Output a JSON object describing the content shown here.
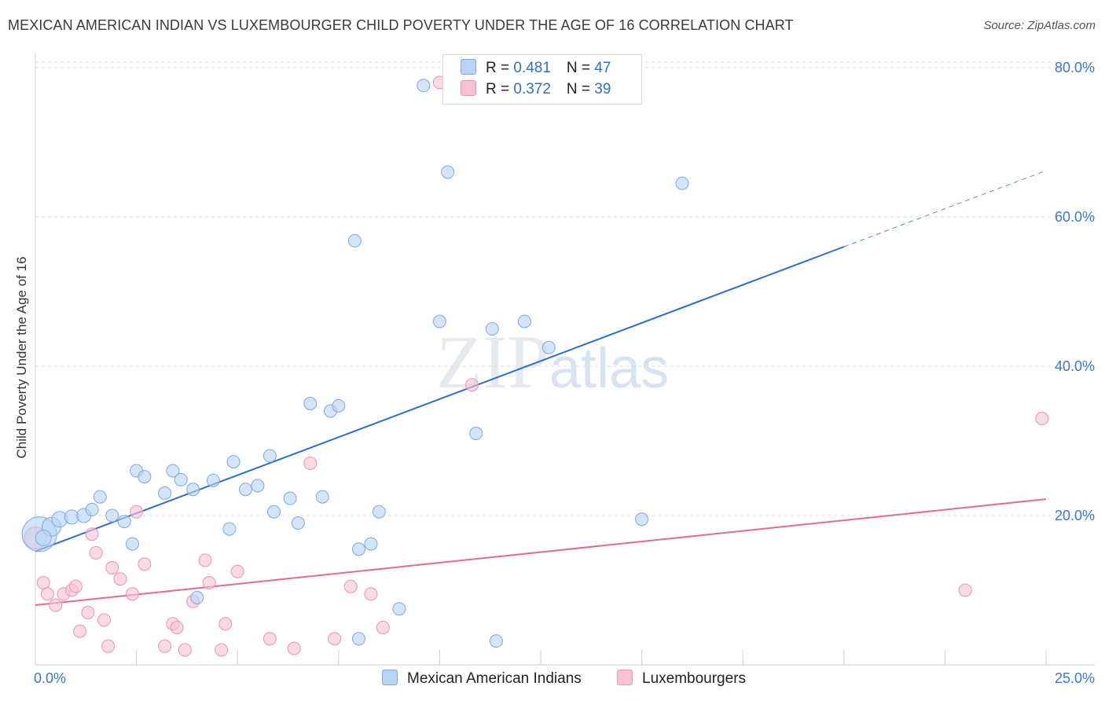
{
  "header": {
    "title": "MEXICAN AMERICAN INDIAN VS LUXEMBOURGER CHILD POVERTY UNDER THE AGE OF 16 CORRELATION CHART",
    "source": "Source: ZipAtlas.com"
  },
  "watermark": {
    "zip": "ZIP",
    "atlas": "atlas"
  },
  "legend_top": [
    {
      "r_label": "R = ",
      "r_value": "0.481",
      "n_label": "N = ",
      "n_value": "47"
    },
    {
      "r_label": "R = ",
      "r_value": "0.372",
      "n_label": "N = ",
      "n_value": "39"
    }
  ],
  "legend_bottom": [
    {
      "label": "Mexican American Indians"
    },
    {
      "label": "Luxembourgers"
    }
  ],
  "colors": {
    "blue_fill": "#b8d3f5",
    "blue_stroke": "#7aa9e3",
    "blue_line": "#2a6fd0",
    "pink_fill": "#f7c3d3",
    "pink_stroke": "#ee93b0",
    "pink_line": "#e46a95",
    "grid": "#dcdcdc",
    "axis_text": "#3b78c9"
  },
  "chart_data": {
    "type": "scatter",
    "title": "MEXICAN AMERICAN INDIAN VS LUXEMBOURGER CHILD POVERTY UNDER THE AGE OF 16 CORRELATION CHART",
    "xlabel": "",
    "ylabel": "Child Poverty Under the Age of 16",
    "xlim": [
      0,
      25
    ],
    "ylim": [
      0,
      82
    ],
    "x_tick_labels": [
      "0.0%",
      "25.0%"
    ],
    "y_ticks": [
      20,
      40,
      60,
      80
    ],
    "y_tick_labels": [
      "20.0%",
      "40.0%",
      "60.0%",
      "80.0%"
    ],
    "grid": true,
    "legend_position": "top-center",
    "series": [
      {
        "name": "Mexican American Indians",
        "R": 0.481,
        "N": 47,
        "trend": {
          "x0": 0,
          "y0": 15.2,
          "x1": 20,
          "y1": 56.0,
          "dashed_to_x": 25,
          "dashed_to_y": 66.2
        },
        "points": [
          [
            0.1,
            17.5,
            22
          ],
          [
            0.4,
            18.5,
            12
          ],
          [
            0.6,
            19.5,
            10
          ],
          [
            0.9,
            19.8,
            9
          ],
          [
            1.2,
            20.0,
            9
          ],
          [
            1.4,
            20.8,
            8
          ],
          [
            1.6,
            22.5,
            8
          ],
          [
            1.9,
            20.0,
            8
          ],
          [
            2.2,
            19.2,
            8
          ],
          [
            2.4,
            16.2,
            8
          ],
          [
            2.5,
            26.0,
            8
          ],
          [
            2.7,
            25.2,
            8
          ],
          [
            3.2,
            23.0,
            8
          ],
          [
            3.4,
            26.0,
            8
          ],
          [
            3.6,
            24.8,
            8
          ],
          [
            3.9,
            23.5,
            8
          ],
          [
            4.4,
            24.7,
            8
          ],
          [
            4.8,
            18.2,
            8
          ],
          [
            4.9,
            27.2,
            8
          ],
          [
            5.2,
            23.5,
            8
          ],
          [
            5.5,
            24.0,
            8
          ],
          [
            5.8,
            28.0,
            8
          ],
          [
            5.9,
            20.5,
            8
          ],
          [
            6.3,
            22.3,
            8
          ],
          [
            6.5,
            19.0,
            8
          ],
          [
            6.8,
            35.0,
            8
          ],
          [
            7.1,
            22.5,
            8
          ],
          [
            7.3,
            34.0,
            8
          ],
          [
            7.5,
            34.7,
            8
          ],
          [
            7.9,
            56.8,
            8
          ],
          [
            8.0,
            15.5,
            8
          ],
          [
            8.3,
            16.2,
            8
          ],
          [
            8.5,
            20.5,
            8
          ],
          [
            9.0,
            7.5,
            8
          ],
          [
            9.6,
            77.6,
            8
          ],
          [
            10.0,
            46.0,
            8
          ],
          [
            10.2,
            66.0,
            8
          ],
          [
            10.9,
            31.0,
            8
          ],
          [
            11.3,
            45.0,
            8
          ],
          [
            12.1,
            46.0,
            8
          ],
          [
            12.7,
            42.5,
            8
          ],
          [
            15.0,
            19.5,
            8
          ],
          [
            16.0,
            64.5,
            8
          ],
          [
            4.0,
            9.0,
            8
          ],
          [
            8.0,
            3.5,
            8
          ],
          [
            11.4,
            3.2,
            8
          ],
          [
            0.2,
            17.0,
            10
          ]
        ]
      },
      {
        "name": "Luxembourgers",
        "R": 0.372,
        "N": 39,
        "trend": {
          "x0": 0,
          "y0": 8.0,
          "x1": 25,
          "y1": 22.2
        },
        "points": [
          [
            0.0,
            17.0,
            14
          ],
          [
            0.2,
            11.0,
            8
          ],
          [
            0.3,
            9.5,
            8
          ],
          [
            0.5,
            8.0,
            8
          ],
          [
            0.7,
            9.5,
            8
          ],
          [
            0.9,
            10.0,
            8
          ],
          [
            1.0,
            10.5,
            8
          ],
          [
            1.1,
            4.5,
            8
          ],
          [
            1.3,
            7.0,
            8
          ],
          [
            1.4,
            17.5,
            8
          ],
          [
            1.5,
            15.0,
            8
          ],
          [
            1.7,
            6.0,
            8
          ],
          [
            1.8,
            2.5,
            8
          ],
          [
            1.9,
            13.0,
            8
          ],
          [
            2.1,
            11.5,
            8
          ],
          [
            2.4,
            9.5,
            8
          ],
          [
            2.5,
            20.5,
            8
          ],
          [
            2.7,
            13.5,
            8
          ],
          [
            3.2,
            2.5,
            8
          ],
          [
            3.4,
            5.5,
            8
          ],
          [
            3.5,
            5.0,
            8
          ],
          [
            3.7,
            2.0,
            8
          ],
          [
            3.9,
            8.5,
            8
          ],
          [
            4.2,
            14.0,
            8
          ],
          [
            4.3,
            11.0,
            8
          ],
          [
            4.6,
            2.0,
            8
          ],
          [
            4.7,
            5.5,
            8
          ],
          [
            5.0,
            12.5,
            8
          ],
          [
            5.8,
            3.5,
            8
          ],
          [
            6.4,
            2.2,
            8
          ],
          [
            6.8,
            27.0,
            8
          ],
          [
            7.4,
            3.5,
            8
          ],
          [
            7.8,
            10.5,
            8
          ],
          [
            8.3,
            9.5,
            8
          ],
          [
            8.6,
            5.0,
            8
          ],
          [
            10.0,
            78.0,
            8
          ],
          [
            10.8,
            37.5,
            8
          ],
          [
            23.0,
            10.0,
            8
          ],
          [
            24.9,
            33.0,
            8
          ]
        ]
      }
    ]
  }
}
